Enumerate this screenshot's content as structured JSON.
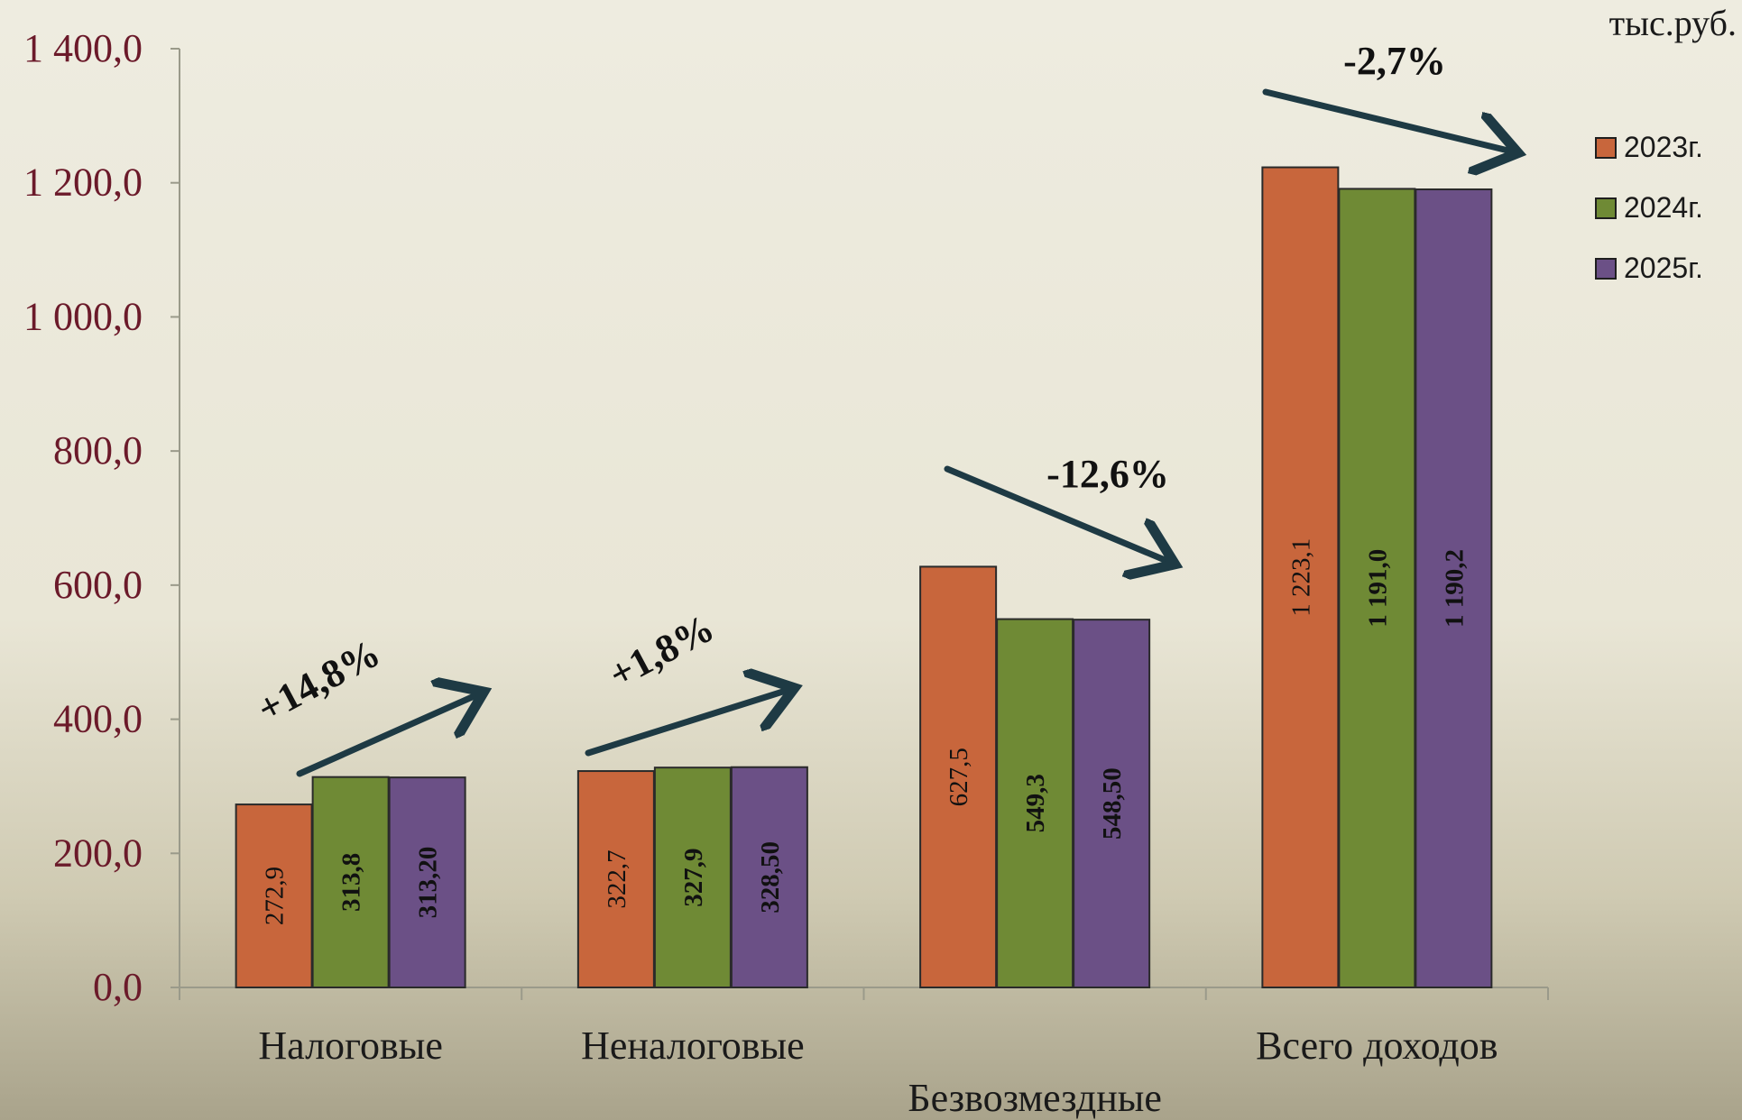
{
  "unit_label": "тыс.руб.",
  "colors": {
    "series": [
      "#c8663c",
      "#6f8a35",
      "#6b5086"
    ],
    "axis_tick_text": "#6b1a2a",
    "category_text": "#1a1a1a",
    "arrow": "#1e3a44"
  },
  "chart_data": {
    "type": "bar",
    "categories": [
      "Налоговые",
      "Неналоговые",
      "Безвозмездные",
      "Всего доходов"
    ],
    "series": [
      {
        "name": "2023г.",
        "values": [
          272.9,
          322.7,
          627.5,
          1223.1
        ],
        "labels": [
          "272,9",
          "322,7",
          "627,5",
          "1 223,1"
        ]
      },
      {
        "name": "2024г.",
        "values": [
          313.8,
          327.9,
          549.3,
          1191.0
        ],
        "labels": [
          "313,8",
          "327,9",
          "549,3",
          "1 191,0"
        ]
      },
      {
        "name": "2025г.",
        "values": [
          313.2,
          328.5,
          548.5,
          1190.2
        ],
        "labels": [
          "313,20",
          "328,50",
          "548,50",
          "1 190,2"
        ]
      }
    ],
    "ylim": [
      0,
      1400
    ],
    "yticks": [
      0,
      200,
      400,
      600,
      800,
      1000,
      1200,
      1400
    ],
    "ytick_labels": [
      "0,0",
      "200,0",
      "400,0",
      "600,0",
      "800,0",
      "1 000,0",
      "1 200,0",
      "1 400,0"
    ],
    "title": "",
    "xlabel": "",
    "ylabel": "",
    "legend_position": "right",
    "annotations": [
      "+14,8%",
      "+1,8%",
      "-12,6%",
      "-2,7%"
    ]
  }
}
